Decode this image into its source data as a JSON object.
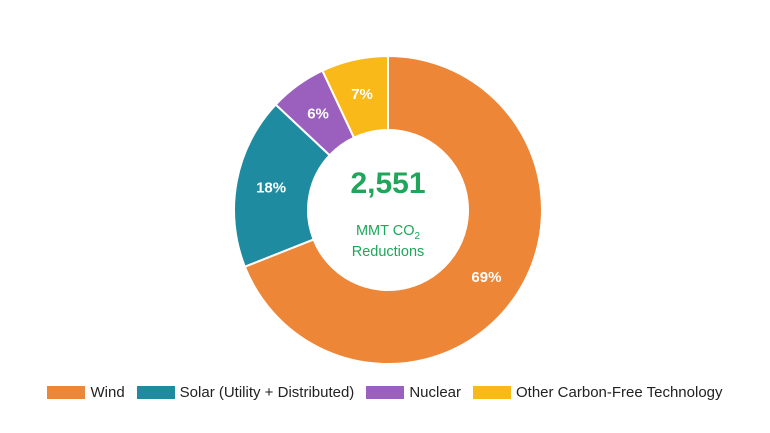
{
  "chart_data": {
    "type": "pie",
    "variant": "donut",
    "center_value": "2,551",
    "center_label_prefix": "MMT CO",
    "center_label_subscript": "2",
    "center_label_line2": "Reductions",
    "slices": [
      {
        "name": "Wind",
        "value": 69,
        "label": "69%",
        "color": "#ED8636"
      },
      {
        "name": "Solar (Utility + Distributed)",
        "value": 18,
        "label": "18%",
        "color": "#1F8BA0"
      },
      {
        "name": "Nuclear",
        "value": 6,
        "label": "6%",
        "color": "#9B5FBD"
      },
      {
        "name": "Other Carbon-Free Technology",
        "value": 7,
        "label": "7%",
        "color": "#F9B918"
      }
    ],
    "legend_position": "bottom",
    "center_text_color": "#1FA65A"
  }
}
